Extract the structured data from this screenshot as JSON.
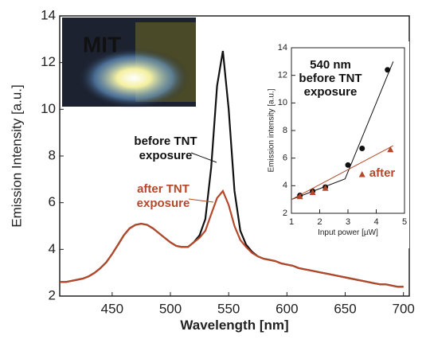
{
  "chart_data": [
    {
      "type": "line",
      "xlabel": "Wavelength [nm]",
      "ylabel": "Emission Intensity [a.u.]",
      "xlim": [
        405,
        705
      ],
      "ylim": [
        2,
        14
      ],
      "xticks": [
        450,
        500,
        550,
        600,
        650,
        700
      ],
      "yticks": [
        2,
        4,
        6,
        8,
        10,
        12,
        14
      ],
      "image_text": "MIT",
      "x": [
        405,
        410,
        415,
        420,
        425,
        430,
        435,
        440,
        445,
        450,
        455,
        460,
        465,
        470,
        475,
        480,
        485,
        490,
        495,
        500,
        505,
        510,
        515,
        520,
        525,
        530,
        535,
        540,
        545,
        550,
        555,
        560,
        565,
        570,
        575,
        580,
        585,
        590,
        595,
        600,
        605,
        610,
        615,
        620,
        625,
        630,
        635,
        640,
        645,
        650,
        655,
        660,
        665,
        670,
        675,
        680,
        685,
        690,
        695,
        700
      ],
      "series": [
        {
          "name": "before TNT exposure",
          "label_lines": [
            "before TNT",
            "exposure"
          ],
          "color": "#111111",
          "values": [
            2.6,
            2.6,
            2.65,
            2.7,
            2.75,
            2.85,
            3.0,
            3.2,
            3.45,
            3.8,
            4.2,
            4.6,
            4.9,
            5.05,
            5.1,
            5.05,
            4.9,
            4.7,
            4.5,
            4.3,
            4.15,
            4.1,
            4.1,
            4.3,
            4.6,
            5.3,
            7.5,
            11.0,
            12.5,
            10.0,
            6.5,
            4.8,
            4.2,
            3.9,
            3.7,
            3.6,
            3.55,
            3.5,
            3.4,
            3.35,
            3.3,
            3.2,
            3.15,
            3.1,
            3.05,
            3.0,
            2.95,
            2.9,
            2.85,
            2.8,
            2.75,
            2.7,
            2.65,
            2.6,
            2.55,
            2.5,
            2.5,
            2.45,
            2.4,
            2.4
          ]
        },
        {
          "name": "after TNT exposure",
          "label_lines": [
            "after TNT",
            "exposure"
          ],
          "color": "#b5482a",
          "values": [
            2.6,
            2.6,
            2.65,
            2.7,
            2.75,
            2.85,
            3.0,
            3.2,
            3.45,
            3.8,
            4.2,
            4.6,
            4.9,
            5.05,
            5.1,
            5.05,
            4.9,
            4.7,
            4.5,
            4.3,
            4.15,
            4.1,
            4.1,
            4.3,
            4.5,
            4.8,
            5.5,
            6.2,
            6.5,
            5.9,
            5.0,
            4.4,
            4.1,
            3.85,
            3.7,
            3.6,
            3.55,
            3.5,
            3.4,
            3.35,
            3.3,
            3.2,
            3.15,
            3.1,
            3.05,
            3.0,
            2.95,
            2.9,
            2.85,
            2.8,
            2.75,
            2.7,
            2.65,
            2.6,
            2.55,
            2.5,
            2.5,
            2.45,
            2.4,
            2.4
          ]
        }
      ]
    },
    {
      "type": "scatter",
      "title_lines": [
        "540 nm",
        "before TNT",
        "exposure"
      ],
      "xlabel": "Input power [µW]",
      "ylabel": "Emission intensity [a.u.]",
      "xlim": [
        1,
        5
      ],
      "ylim": [
        2,
        14
      ],
      "xticks": [
        1,
        2,
        3,
        4,
        5
      ],
      "yticks": [
        2,
        4,
        6,
        8,
        10,
        12,
        14
      ],
      "series": [
        {
          "name": "before",
          "color": "#111111",
          "marker": "circle",
          "x": [
            1.3,
            1.75,
            2.2,
            3.0,
            3.5,
            4.4
          ],
          "values": [
            3.3,
            3.6,
            3.9,
            5.5,
            6.7,
            12.4
          ],
          "fit": {
            "x": [
              1.0,
              2.9,
              4.6
            ],
            "y": [
              3.0,
              4.5,
              13.0
            ]
          }
        },
        {
          "name": "after",
          "label": "after",
          "color": "#b5482a",
          "marker": "triangle",
          "x": [
            1.3,
            1.75,
            2.2,
            3.5,
            4.5
          ],
          "values": [
            3.2,
            3.5,
            3.8,
            4.8,
            6.6
          ],
          "fit": {
            "x": [
              1.0,
              4.6
            ],
            "y": [
              3.0,
              6.9
            ]
          }
        }
      ]
    }
  ]
}
